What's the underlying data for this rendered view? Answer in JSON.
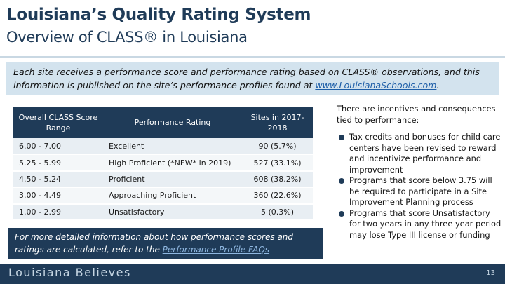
{
  "title": "Louisiana’s Quality Rating System",
  "subtitle": "Overview of CLASS® in Louisiana",
  "intro": {
    "text": "Each site receives a performance score and performance rating based on CLASS® observations, and this information is published on the site’s performance profiles found at ",
    "link": "www.LouisianaSchools.com",
    "after": "."
  },
  "table": {
    "headers": [
      "Overall CLASS Score Range",
      "Performance Rating",
      "Sites in 2017-2018"
    ],
    "rows": [
      [
        "6.00 - 7.00",
        "Excellent",
        "90 (5.7%)"
      ],
      [
        "5.25 - 5.99",
        "High Proficient (*NEW* in 2019)",
        "527 (33.1%)"
      ],
      [
        "4.50 - 5.24",
        "Proficient",
        "608 (38.2%)"
      ],
      [
        "3.00 - 4.49",
        "Approaching Proficient",
        "360 (22.6%)"
      ],
      [
        "1.00 - 2.99",
        "Unsatisfactory",
        "5 (0.3%)"
      ]
    ]
  },
  "footnote": {
    "text": "For more detailed information about how performance scores and ratings are calculated, refer to the ",
    "link": "Performance Profile FAQs"
  },
  "side": {
    "intro": "There are incentives and consequences tied to performance:",
    "bullets": [
      "Tax credits and bonuses for child care centers have been revised to reward and incentivize performance and improvement",
      "Programs that score below 3.75 will be required to participate in a Site Improvement Planning process",
      "Programs that score Unsatisfactory for two years in any three year period may lose Type III license or funding"
    ]
  },
  "footer": {
    "brand": "Louisiana Believes",
    "page": "13"
  },
  "colors": {
    "navy": "#1f3b58",
    "intro_bg": "#d3e3ee",
    "link": "#1f5fa8"
  }
}
